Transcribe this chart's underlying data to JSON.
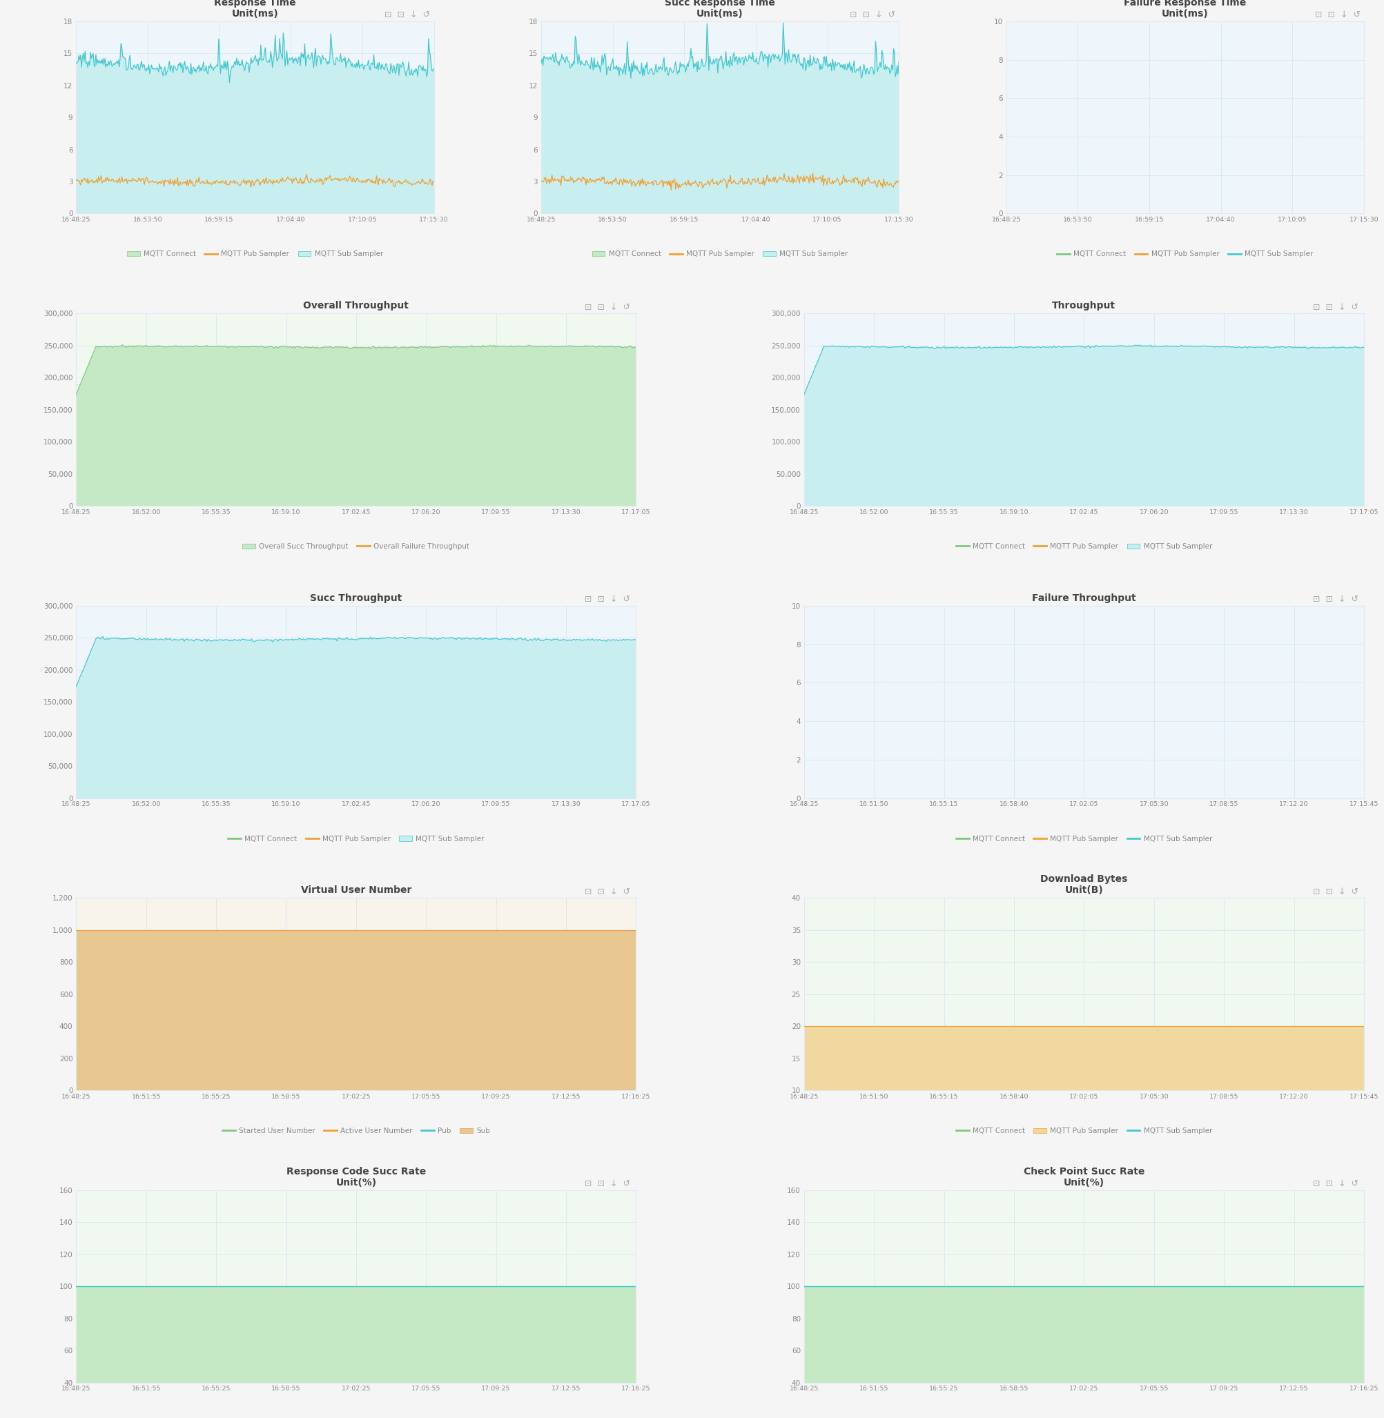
{
  "bg_color": "#f5f5f5",
  "panel_bg": "#ffffff",
  "grid_color": "#d8e8f0",
  "title_color": "#444444",
  "axis_color": "#888888",
  "border_color": "#e0e8f0",
  "panels": [
    {
      "title": "Response Time",
      "subtitle": "Unit(ms)",
      "row": 0,
      "col": 0,
      "ylim": [
        0,
        18
      ],
      "yticks": [
        0,
        3,
        6,
        9,
        12,
        15,
        18
      ],
      "xticks": [
        "16:48:25",
        "16:53:50",
        "16:59:15",
        "17:04:40",
        "17:10:05",
        "17:15:30"
      ],
      "panel_bg": "#eef6fb",
      "series": [
        {
          "label": "MQTT Connect",
          "color": "#7dc87d",
          "fill_color": "#c5e8c5",
          "style": "fill_line",
          "base": 0.0,
          "amplitude": 0.0,
          "noise": 0.0
        },
        {
          "label": "MQTT Pub Sampler",
          "color": "#f0a030",
          "fill_color": null,
          "style": "line",
          "base": 3.0,
          "amplitude": 0.15,
          "noise": 0.18
        },
        {
          "label": "MQTT Sub Sampler",
          "color": "#40c8d0",
          "fill_color": "#c8eef0",
          "style": "fill_line",
          "base": 14.0,
          "amplitude": 0.5,
          "noise": 0.35
        }
      ]
    },
    {
      "title": "Succ Response Time",
      "subtitle": "Unit(ms)",
      "row": 0,
      "col": 1,
      "ylim": [
        0,
        18
      ],
      "yticks": [
        0,
        3,
        6,
        9,
        12,
        15,
        18
      ],
      "xticks": [
        "16:48:25",
        "16:53:50",
        "16:59:15",
        "17:04:40",
        "17:10:05",
        "17:15:30"
      ],
      "panel_bg": "#eef6fb",
      "series": [
        {
          "label": "MQTT Connect",
          "color": "#7dc87d",
          "fill_color": "#c5e8c5",
          "style": "fill_line",
          "base": 0.0,
          "amplitude": 0.0,
          "noise": 0.0
        },
        {
          "label": "MQTT Pub Sampler",
          "color": "#f0a030",
          "fill_color": null,
          "style": "line",
          "base": 3.0,
          "amplitude": 0.18,
          "noise": 0.22
        },
        {
          "label": "MQTT Sub Sampler",
          "color": "#40c8d0",
          "fill_color": "#c8eef0",
          "style": "fill_line",
          "base": 14.0,
          "amplitude": 0.5,
          "noise": 0.38
        }
      ]
    },
    {
      "title": "Failure Response Time",
      "subtitle": "Unit(ms)",
      "row": 0,
      "col": 2,
      "ylim": [
        0,
        10
      ],
      "yticks": [
        0,
        2,
        4,
        6,
        8,
        10
      ],
      "xticks": [
        "16:48:25",
        "16:53:50",
        "16:59:15",
        "17:04:40",
        "17:10:05",
        "17:15:30"
      ],
      "panel_bg": "#eef6fb",
      "series": [
        {
          "label": "MQTT Connect",
          "color": "#7dc87d",
          "fill_color": null,
          "style": "line",
          "base": 0.0,
          "amplitude": 0.0,
          "noise": 0.0
        },
        {
          "label": "MQTT Pub Sampler",
          "color": "#f0a030",
          "fill_color": null,
          "style": "line",
          "base": 0.0,
          "amplitude": 0.0,
          "noise": 0.0
        },
        {
          "label": "MQTT Sub Sampler",
          "color": "#40c8d0",
          "fill_color": null,
          "style": "line",
          "base": 0.0,
          "amplitude": 0.0,
          "noise": 0.0
        }
      ]
    },
    {
      "title": "Overall Throughput",
      "subtitle": "",
      "row": 1,
      "col": 0,
      "ylim": [
        0,
        300000
      ],
      "yticks": [
        0,
        50000,
        100000,
        150000,
        200000,
        250000,
        300000
      ],
      "yticklabels": [
        "0",
        "50,000",
        "100,000",
        "150,000",
        "200,000",
        "250,000",
        "300,000"
      ],
      "xticks": [
        "16:48:25",
        "16:52:00",
        "16:55:35",
        "16:59:10",
        "17:02:45",
        "17:06:20",
        "17:09:55",
        "17:13:30",
        "17:17:05"
      ],
      "panel_bg": "#f0f8f0",
      "series": [
        {
          "label": "Overall Succ Throughput",
          "color": "#7dc87d",
          "fill_color": "#c5e8c5",
          "style": "fill_line",
          "base": 248000,
          "amplitude": 1000,
          "noise": 700
        },
        {
          "label": "Overall Failure Throughput",
          "color": "#f0a030",
          "fill_color": null,
          "style": "line",
          "base": 0.0,
          "amplitude": 0.0,
          "noise": 0.0
        }
      ]
    },
    {
      "title": "Throughput",
      "subtitle": "",
      "row": 1,
      "col": 1,
      "ylim": [
        0,
        300000
      ],
      "yticks": [
        0,
        50000,
        100000,
        150000,
        200000,
        250000,
        300000
      ],
      "yticklabels": [
        "0",
        "50,000",
        "100,000",
        "150,000",
        "200,000",
        "250,000",
        "300,000"
      ],
      "xticks": [
        "16:48:25",
        "16:52:00",
        "16:55:35",
        "16:59:10",
        "17:02:45",
        "17:06:20",
        "17:09:55",
        "17:13:30",
        "17:17:05"
      ],
      "panel_bg": "#eef6fb",
      "series": [
        {
          "label": "MQTT Connect",
          "color": "#7dc87d",
          "fill_color": null,
          "style": "line",
          "base": 0.0,
          "amplitude": 0.0,
          "noise": 0.0
        },
        {
          "label": "MQTT Pub Sampler",
          "color": "#f0a030",
          "fill_color": null,
          "style": "line",
          "base": 0.0,
          "amplitude": 0.0,
          "noise": 0.0
        },
        {
          "label": "MQTT Sub Sampler",
          "color": "#40c8d0",
          "fill_color": "#c8eef0",
          "style": "fill_line",
          "base": 248000,
          "amplitude": 1200,
          "noise": 700
        }
      ]
    },
    {
      "title": "Succ Throughput",
      "subtitle": "",
      "row": 2,
      "col": 0,
      "ylim": [
        0,
        300000
      ],
      "yticks": [
        0,
        50000,
        100000,
        150000,
        200000,
        250000,
        300000
      ],
      "yticklabels": [
        "0",
        "50,000",
        "100,000",
        "150,000",
        "200,000",
        "250,000",
        "300,000"
      ],
      "xticks": [
        "16:48:25",
        "16:52:00",
        "16:55:35",
        "16:59:10",
        "17:02:45",
        "17:06:20",
        "17:09:55",
        "17:13:30",
        "17:17:05"
      ],
      "panel_bg": "#eef6fb",
      "series": [
        {
          "label": "MQTT Connect",
          "color": "#7dc87d",
          "fill_color": null,
          "style": "line",
          "base": 0.0,
          "amplitude": 0.0,
          "noise": 0.0
        },
        {
          "label": "MQTT Pub Sampler",
          "color": "#f0a030",
          "fill_color": null,
          "style": "line",
          "base": 0.0,
          "amplitude": 0.0,
          "noise": 0.0
        },
        {
          "label": "MQTT Sub Sampler",
          "color": "#40c8d0",
          "fill_color": "#c8eef0",
          "style": "fill_line",
          "base": 248000,
          "amplitude": 1500,
          "noise": 900
        }
      ]
    },
    {
      "title": "Failure Throughput",
      "subtitle": "",
      "row": 2,
      "col": 1,
      "ylim": [
        0,
        10
      ],
      "yticks": [
        0,
        2,
        4,
        6,
        8,
        10
      ],
      "xticks": [
        "16:48:25",
        "16:51:50",
        "16:55:15",
        "16:58:40",
        "17:02:05",
        "17:05:30",
        "17:08:55",
        "17:12:20",
        "17:15:45"
      ],
      "panel_bg": "#eef6fb",
      "series": [
        {
          "label": "MQTT Connect",
          "color": "#7dc87d",
          "fill_color": null,
          "style": "line",
          "base": 0.0,
          "amplitude": 0.0,
          "noise": 0.0
        },
        {
          "label": "MQTT Pub Sampler",
          "color": "#f0a030",
          "fill_color": null,
          "style": "line",
          "base": 0.0,
          "amplitude": 0.0,
          "noise": 0.0
        },
        {
          "label": "MQTT Sub Sampler",
          "color": "#40c8d0",
          "fill_color": null,
          "style": "line",
          "base": 0.0,
          "amplitude": 0.0,
          "noise": 0.0
        }
      ]
    },
    {
      "title": "Virtual User Number",
      "subtitle": "",
      "row": 3,
      "col": 0,
      "ylim": [
        0,
        1200
      ],
      "yticks": [
        0,
        200,
        400,
        600,
        800,
        1000,
        1200
      ],
      "yticklabels": [
        "0",
        "200",
        "400",
        "600",
        "800",
        "1,000",
        "1,200"
      ],
      "xticks": [
        "16:48:25",
        "16:51:55",
        "16:55:25",
        "16:58:55",
        "17:02:25",
        "17:05:55",
        "17:09:25",
        "17:12:55",
        "17:16:25"
      ],
      "panel_bg": "#f8f4ec",
      "series": [
        {
          "label": "Started User Number",
          "color": "#7dc87d",
          "fill_color": null,
          "style": "line",
          "base": 0.0,
          "amplitude": 0.0,
          "noise": 0.0
        },
        {
          "label": "Active User Number",
          "color": "#f0a030",
          "fill_color": null,
          "style": "line",
          "base": 0.0,
          "amplitude": 0.0,
          "noise": 0.0
        },
        {
          "label": "Pub",
          "color": "#40c8d0",
          "fill_color": null,
          "style": "line",
          "base": 0.0,
          "amplitude": 0.0,
          "noise": 0.0
        },
        {
          "label": "Sub",
          "color": "#e8a050",
          "fill_color": "#e8c890",
          "style": "fill_line",
          "base": 1000,
          "amplitude": 0.0,
          "noise": 0.0
        }
      ]
    },
    {
      "title": "Download Bytes",
      "subtitle": "Unit(B)",
      "row": 3,
      "col": 1,
      "ylim": [
        10,
        40
      ],
      "yticks": [
        10,
        15,
        20,
        25,
        30,
        35,
        40
      ],
      "xticks": [
        "16:48:25",
        "16:51:50",
        "16:55:15",
        "16:58:40",
        "17:02:05",
        "17:05:30",
        "17:08:55",
        "17:12:20",
        "17:15:45"
      ],
      "panel_bg": "#f0f8f0",
      "series": [
        {
          "label": "MQTT Connect",
          "color": "#7dc87d",
          "fill_color": null,
          "style": "line",
          "base": 0.0,
          "amplitude": 0.0,
          "noise": 0.0
        },
        {
          "label": "MQTT Pub Sampler",
          "color": "#f0a030",
          "fill_color": "#f0d8a0",
          "style": "fill_line",
          "base": 20.0,
          "amplitude": 0.0,
          "noise": 0.0
        },
        {
          "label": "MQTT Sub Sampler",
          "color": "#40c8d0",
          "fill_color": null,
          "style": "line",
          "base": 0.0,
          "amplitude": 0.0,
          "noise": 0.0
        }
      ]
    },
    {
      "title": "Response Code Succ Rate",
      "subtitle": "Unit(%)",
      "row": 4,
      "col": 0,
      "ylim": [
        40,
        160
      ],
      "yticks": [
        40,
        60,
        80,
        100,
        120,
        140,
        160
      ],
      "xticks": [
        "16:48:25",
        "16:51:55",
        "16:55:25",
        "16:58:55",
        "17:02:25",
        "17:05:55",
        "17:09:25",
        "17:12:55",
        "17:16:25"
      ],
      "panel_bg": "#f0f8f0",
      "series": [
        {
          "label": "MQTT Connect",
          "color": "#7dc87d",
          "fill_color": "#c5e8c5",
          "style": "fill_line",
          "base": 100.0,
          "amplitude": 0.0,
          "noise": 0.0
        },
        {
          "label": "MQTT Pub Sampler",
          "color": "#f0a030",
          "fill_color": null,
          "style": "line",
          "base": 0.0,
          "amplitude": 0.0,
          "noise": 0.0
        },
        {
          "label": "MQTT Sub Sampler",
          "color": "#40c8d0",
          "fill_color": null,
          "style": "line",
          "base": 100.0,
          "amplitude": 0.0,
          "noise": 0.0
        }
      ]
    },
    {
      "title": "Check Point Succ Rate",
      "subtitle": "Unit(%)",
      "row": 4,
      "col": 1,
      "ylim": [
        40,
        160
      ],
      "yticks": [
        40,
        60,
        80,
        100,
        120,
        140,
        160
      ],
      "xticks": [
        "16:48:25",
        "16:51:55",
        "16:55:25",
        "16:58:55",
        "17:02:25",
        "17:05:55",
        "17:09:25",
        "17:12:55",
        "17:16:25"
      ],
      "panel_bg": "#f0f8f0",
      "series": [
        {
          "label": "MQTT Connect",
          "color": "#7dc87d",
          "fill_color": "#c5e8c5",
          "style": "fill_line",
          "base": 100.0,
          "amplitude": 0.0,
          "noise": 0.0
        },
        {
          "label": "MQTT Pub Sampler",
          "color": "#f0a030",
          "fill_color": null,
          "style": "line",
          "base": 0.0,
          "amplitude": 0.0,
          "noise": 0.0
        },
        {
          "label": "MQTT Sub Sampler",
          "color": "#40c8d0",
          "fill_color": null,
          "style": "line",
          "base": 100.0,
          "amplitude": 0.0,
          "noise": 0.0
        }
      ]
    }
  ]
}
